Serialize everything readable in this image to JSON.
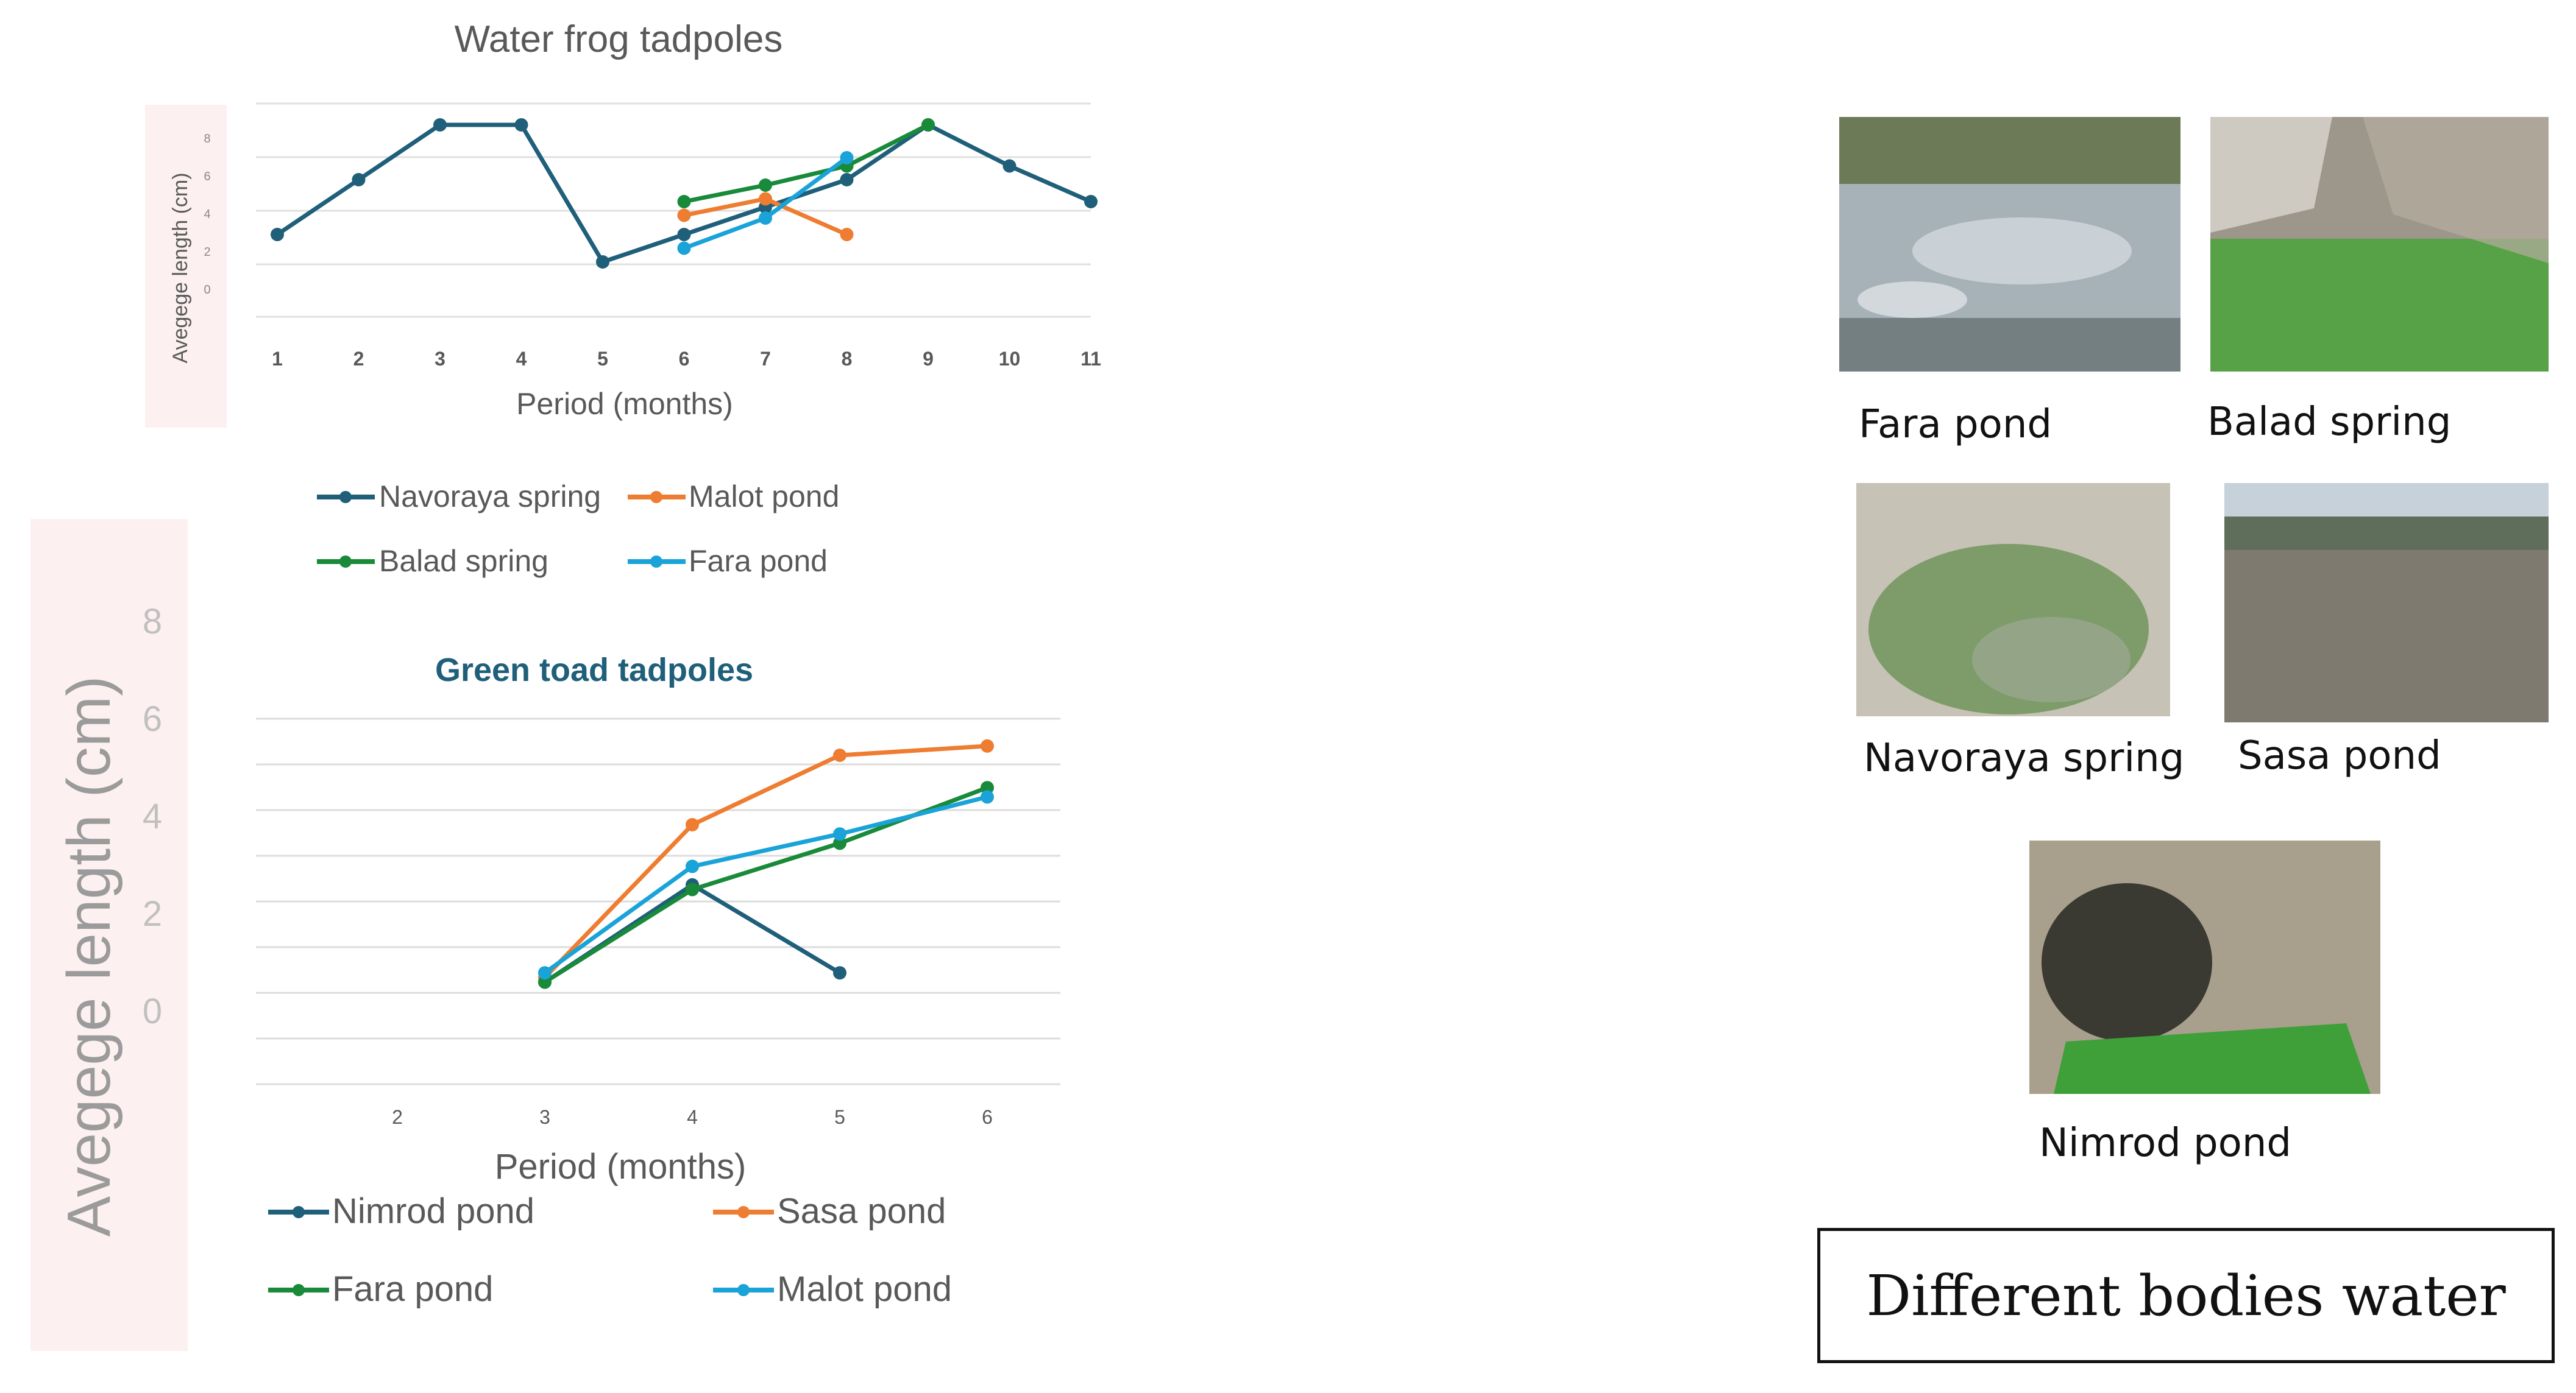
{
  "chart_data": [
    {
      "type": "line",
      "title": "Water frog tadpoles",
      "xlabel": "Period (months)",
      "ylabel": "Avegege length (cm)",
      "x_ticks": [
        "1",
        "2",
        "3",
        "4",
        "5",
        "6",
        "7",
        "8",
        "9",
        "10",
        "11"
      ],
      "y_ticks": [
        "0",
        "2",
        "4",
        "6",
        "8"
      ],
      "ylim": [
        0,
        8
      ],
      "grid": true,
      "legend_position": "bottom",
      "series": [
        {
          "name": "Navoraya spring",
          "color": "#1f5f7a",
          "points": [
            [
              1,
              3
            ],
            [
              2,
              5
            ],
            [
              3,
              7
            ],
            [
              4,
              7
            ],
            [
              5,
              2
            ],
            [
              6,
              3
            ],
            [
              7,
              4
            ],
            [
              8,
              5
            ],
            [
              9,
              7
            ],
            [
              10,
              5.5
            ],
            [
              11,
              4.2
            ]
          ]
        },
        {
          "name": "Malot pond",
          "color": "#ee7d31",
          "points": [
            [
              6,
              3.7
            ],
            [
              7,
              4.3
            ],
            [
              8,
              3
            ]
          ]
        },
        {
          "name": "Balad spring",
          "color": "#198a3a",
          "points": [
            [
              6,
              4.2
            ],
            [
              7,
              4.8
            ],
            [
              8,
              5.5
            ],
            [
              9,
              7
            ]
          ]
        },
        {
          "name": "Fara pond",
          "color": "#1aa3d8",
          "points": [
            [
              6,
              2.5
            ],
            [
              7,
              3.6
            ],
            [
              8,
              5.8
            ]
          ]
        }
      ]
    },
    {
      "type": "line",
      "title": "Green toad tadpoles",
      "xlabel": "Period (months)",
      "ylabel": "Avegege length (cm)",
      "x_ticks": [
        "2",
        "3",
        "4",
        "5",
        "6"
      ],
      "y_ticks": [
        "0",
        "2",
        "4",
        "6",
        "8"
      ],
      "xlim": [
        1.5,
        6.5
      ],
      "ylim": [
        -1,
        6
      ],
      "grid": true,
      "legend_position": "bottom",
      "series": [
        {
          "name": "Nimrod pond",
          "color": "#1f5f7a",
          "points": [
            [
              3,
              0.1
            ],
            [
              4,
              2.2
            ],
            [
              5,
              0.3
            ]
          ]
        },
        {
          "name": "Sasa pond",
          "color": "#ee7d31",
          "points": [
            [
              3,
              0.2
            ],
            [
              4,
              3.5
            ],
            [
              5,
              5
            ],
            [
              6,
              5.2
            ]
          ]
        },
        {
          "name": "Fara pond",
          "color": "#198a3a",
          "points": [
            [
              3,
              0.1
            ],
            [
              4,
              2.1
            ],
            [
              5,
              3.1
            ],
            [
              6,
              4.3
            ]
          ]
        },
        {
          "name": "Malot pond",
          "color": "#1aa3d8",
          "points": [
            [
              3,
              0.3
            ],
            [
              4,
              2.6
            ],
            [
              5,
              3.3
            ],
            [
              6,
              4.1
            ]
          ]
        }
      ]
    }
  ],
  "photos": [
    {
      "caption": "Fara pond",
      "palette": [
        "#6c7a58",
        "#a7b2b8",
        "#525d5e"
      ]
    },
    {
      "caption": "Balad spring",
      "palette": [
        "#9d968a",
        "#57a246",
        "#cfcac1"
      ]
    },
    {
      "caption": "Navoraya spring",
      "palette": [
        "#c7c2b6",
        "#7e9c6a",
        "#9aa88f"
      ]
    },
    {
      "caption": "Sasa pond",
      "palette": [
        "#c6d1d9",
        "#7f7a70",
        "#5e6e5a"
      ]
    },
    {
      "caption": "Nimrod pond",
      "palette": [
        "#a89f8d",
        "#3fa03a",
        "#3a3a32"
      ]
    }
  ],
  "box_label": "Different bodies water"
}
